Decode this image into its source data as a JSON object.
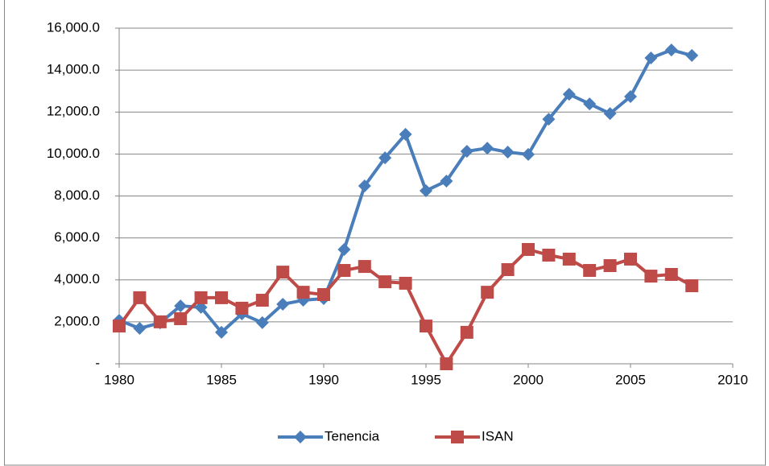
{
  "chart_data": {
    "type": "line",
    "x": [
      1980,
      1981,
      1982,
      1983,
      1984,
      1985,
      1986,
      1987,
      1988,
      1989,
      1990,
      1991,
      1992,
      1993,
      1994,
      1995,
      1996,
      1997,
      1998,
      1999,
      2000,
      2001,
      2002,
      2003,
      2004,
      2005,
      2006,
      2007,
      2008
    ],
    "series": [
      {
        "name": "Tenencia",
        "color": "#4a7ebb",
        "marker": "diamond",
        "values": [
          2070,
          1690,
          1950,
          2760,
          2690,
          1500,
          2380,
          1960,
          2840,
          3030,
          3110,
          5450,
          8480,
          9820,
          10940,
          8250,
          8710,
          10130,
          10280,
          10090,
          9980,
          11660,
          12850,
          12390,
          11930,
          12740,
          14580,
          14960,
          14700
        ]
      },
      {
        "name": "ISAN",
        "color": "#be4b48",
        "marker": "square",
        "values": [
          1800,
          3150,
          2000,
          2150,
          3150,
          3150,
          2650,
          3030,
          4370,
          3410,
          3300,
          4450,
          4640,
          3910,
          3840,
          1800,
          0,
          1500,
          3410,
          4490,
          5450,
          5180,
          4990,
          4450,
          4680,
          4990,
          4180,
          4260,
          3720
        ]
      }
    ],
    "xlim": [
      1980,
      2010
    ],
    "xticks": [
      1980,
      1985,
      1990,
      1995,
      2000,
      2005,
      2010
    ],
    "ylim": [
      0,
      16000
    ],
    "yticks": [
      {
        "value": 0,
        "label": "-"
      },
      {
        "value": 2000,
        "label": "2,000.0"
      },
      {
        "value": 4000,
        "label": "4,000.0"
      },
      {
        "value": 6000,
        "label": "6,000.0"
      },
      {
        "value": 8000,
        "label": "8,000.0"
      },
      {
        "value": 10000,
        "label": "10,000.0"
      },
      {
        "value": 12000,
        "label": "12,000.0"
      },
      {
        "value": 14000,
        "label": "14,000.0"
      },
      {
        "value": 16000,
        "label": "16,000.0"
      }
    ],
    "grid": true,
    "legend": "bottom"
  }
}
